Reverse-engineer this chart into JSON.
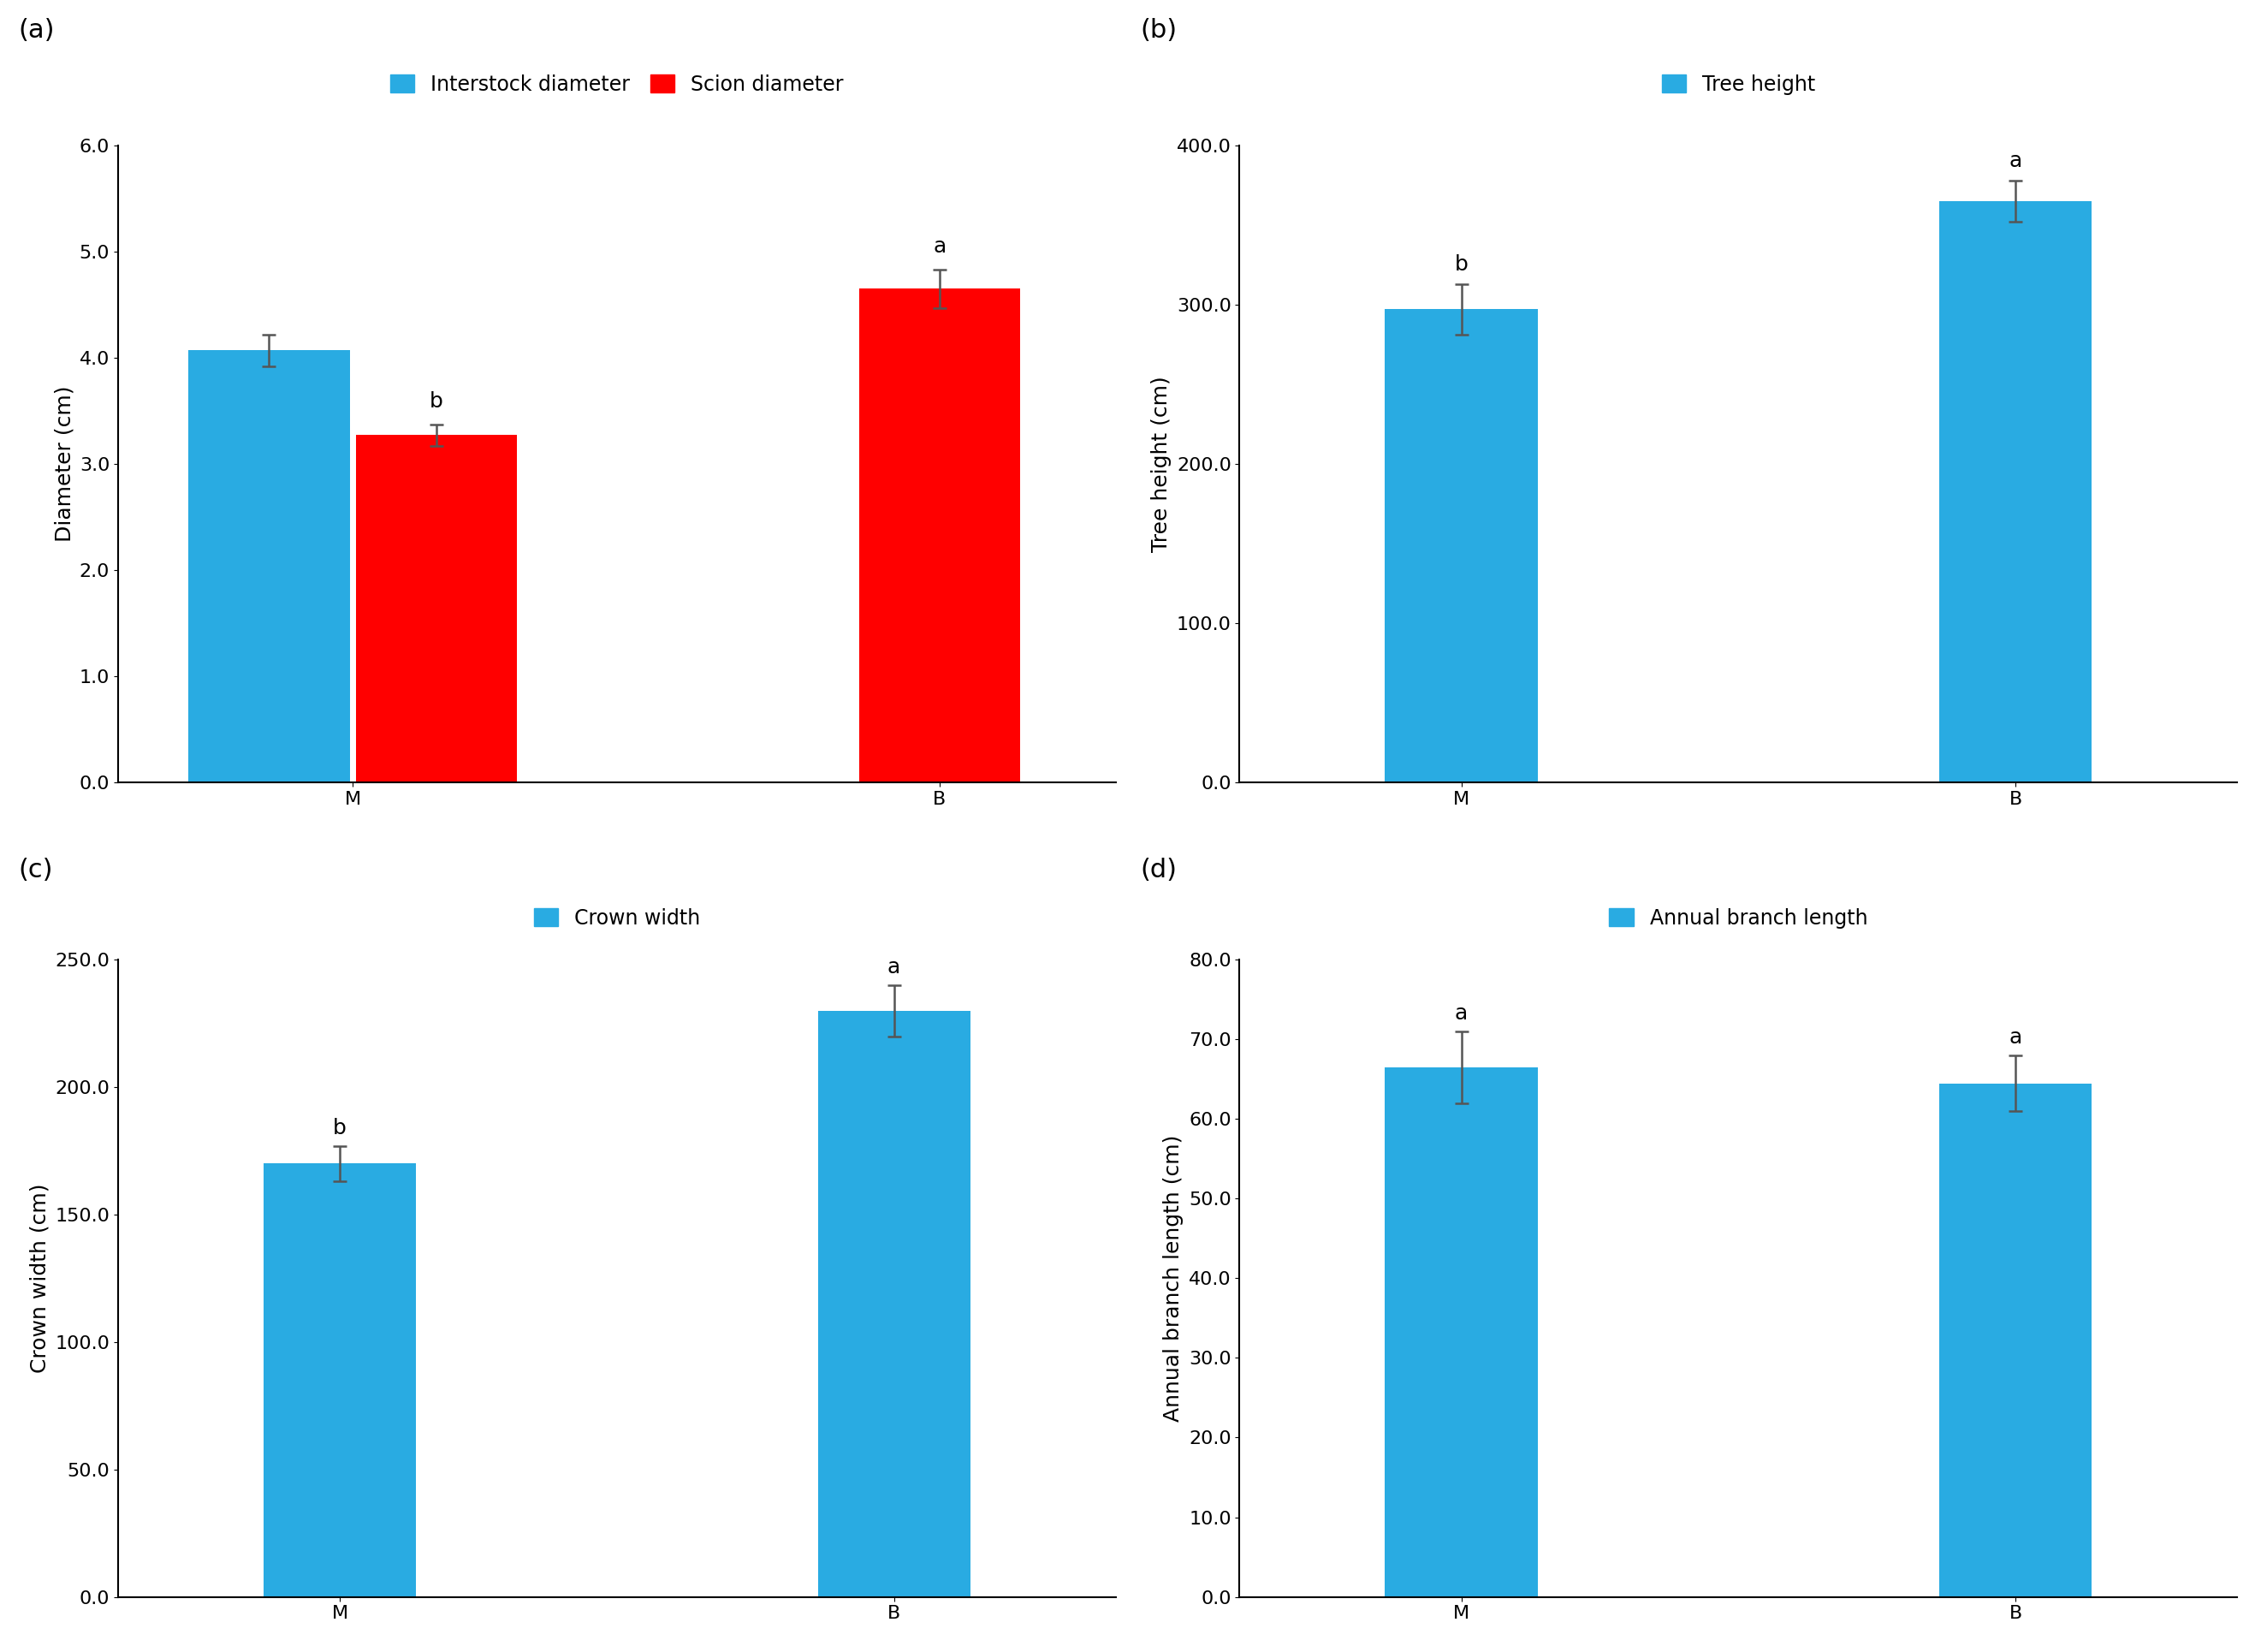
{
  "panel_a": {
    "label": "(a)",
    "legend": [
      "Interstock diameter",
      "Scion diameter"
    ],
    "legend_colors": [
      "#29ABE2",
      "#FF0000"
    ],
    "categories": [
      "M",
      "B"
    ],
    "values_blue": [
      4.07
    ],
    "values_red": [
      3.27,
      4.65
    ],
    "errors_blue": [
      0.15
    ],
    "errors_red": [
      0.1,
      0.18
    ],
    "sig_label_blue": null,
    "sig_label_red_M": "b",
    "sig_label_red_B": "a",
    "ylabel": "Diameter (cm)",
    "ylim": [
      0,
      6.0
    ],
    "yticks": [
      0.0,
      1.0,
      2.0,
      3.0,
      4.0,
      5.0,
      6.0
    ]
  },
  "panel_b": {
    "label": "(b)",
    "legend": [
      "Tree height"
    ],
    "legend_colors": [
      "#29ABE2"
    ],
    "categories": [
      "M",
      "B"
    ],
    "values": [
      297.0,
      365.0
    ],
    "errors": [
      16.0,
      13.0
    ],
    "sig_labels": [
      "b",
      "a"
    ],
    "ylabel": "Tree height (cm)",
    "ylim": [
      0,
      400.0
    ],
    "yticks": [
      0.0,
      100.0,
      200.0,
      300.0,
      400.0
    ]
  },
  "panel_c": {
    "label": "(c)",
    "legend": [
      "Crown width"
    ],
    "legend_colors": [
      "#29ABE2"
    ],
    "categories": [
      "M",
      "B"
    ],
    "values": [
      170.0,
      230.0
    ],
    "errors": [
      7.0,
      10.0
    ],
    "sig_labels": [
      "b",
      "a"
    ],
    "ylabel": "Crown width (cm)",
    "ylim": [
      0,
      250.0
    ],
    "yticks": [
      0.0,
      50.0,
      100.0,
      150.0,
      200.0,
      250.0
    ]
  },
  "panel_d": {
    "label": "(d)",
    "legend": [
      "Annual branch length"
    ],
    "legend_colors": [
      "#29ABE2"
    ],
    "categories": [
      "M",
      "B"
    ],
    "values": [
      66.5,
      64.5
    ],
    "errors": [
      4.5,
      3.5
    ],
    "sig_labels": [
      "a",
      "a"
    ],
    "ylabel": "Annual branch length (cm)",
    "ylim": [
      0,
      80.0
    ],
    "yticks": [
      0.0,
      10.0,
      20.0,
      30.0,
      40.0,
      50.0,
      60.0,
      70.0,
      80.0
    ]
  },
  "bar_color_blue": "#29ABE2",
  "bar_color_red": "#FF0000",
  "sig_label_fontsize": 18,
  "axis_label_fontsize": 18,
  "tick_fontsize": 16,
  "legend_fontsize": 17,
  "panel_label_fontsize": 22,
  "background_color": "#FFFFFF"
}
